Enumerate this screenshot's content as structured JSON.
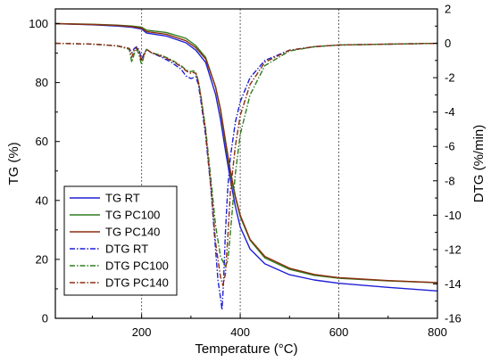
{
  "chart_data": {
    "type": "line",
    "xlabel": "Temperature (°C)",
    "ylabel_left": "TG (%)",
    "ylabel_right": "DTG (%/min)",
    "xlim": [
      25,
      800
    ],
    "ylim_left": [
      0,
      105
    ],
    "ylim_right": [
      -16,
      2
    ],
    "x_ticks": [
      200,
      400,
      600,
      800
    ],
    "y_ticks_left": [
      0,
      20,
      40,
      60,
      80,
      100
    ],
    "y_ticks_right": [
      -16,
      -14,
      -12,
      -10,
      -8,
      -6,
      -4,
      -2,
      0,
      2
    ],
    "x_tick_labels": [
      "200",
      "400",
      "600",
      "800"
    ],
    "y_tick_labels_left": [
      "0",
      "20",
      "40",
      "60",
      "80",
      "100"
    ],
    "y_tick_labels_right": [
      "-16",
      "-14",
      "-12",
      "-10",
      "-8",
      "-6",
      "-4",
      "-2",
      "0",
      "2"
    ],
    "reference_lines_x": [
      200,
      400,
      600
    ],
    "grid": false,
    "legend_position": "bottom-left",
    "series": [
      {
        "name": "TG RT",
        "axis": "left",
        "color": "#1f1fd6",
        "dash": "solid",
        "x": [
          25,
          100,
          150,
          180,
          200,
          210,
          250,
          290,
          310,
          330,
          350,
          360,
          370,
          380,
          390,
          400,
          420,
          450,
          500,
          550,
          600,
          700,
          800
        ],
        "y": [
          100,
          99.6,
          99.2,
          98.8,
          98.2,
          96.8,
          95.8,
          93.5,
          91,
          86.8,
          76,
          67.5,
          57,
          47,
          38,
          31,
          23.5,
          18.5,
          14.8,
          13,
          11.9,
          10.5,
          9.3
        ]
      },
      {
        "name": "TG PC100",
        "axis": "left",
        "color": "#2e7d1e",
        "dash": "solid",
        "x": [
          25,
          100,
          150,
          180,
          200,
          210,
          250,
          290,
          310,
          330,
          350,
          360,
          370,
          380,
          390,
          400,
          420,
          450,
          500,
          550,
          600,
          700,
          800
        ],
        "y": [
          100,
          99.8,
          99.5,
          99.2,
          98.8,
          97.8,
          97,
          95,
          92.5,
          88.5,
          78.5,
          70.5,
          59.5,
          49,
          41,
          34.5,
          26.5,
          20.5,
          16.6,
          14.6,
          13.6,
          12.7,
          12.1
        ]
      },
      {
        "name": "TG PC140",
        "axis": "left",
        "color": "#8b2f10",
        "dash": "solid",
        "x": [
          25,
          100,
          150,
          180,
          200,
          210,
          250,
          290,
          310,
          330,
          350,
          360,
          370,
          380,
          390,
          400,
          420,
          450,
          500,
          550,
          600,
          700,
          800
        ],
        "y": [
          100,
          99.7,
          99.4,
          99,
          98.5,
          97.3,
          96.4,
          94.2,
          91.8,
          88,
          78.5,
          71,
          60.5,
          50,
          41.5,
          35,
          26.8,
          21,
          17,
          14.9,
          13.8,
          12.8,
          12.1
        ]
      },
      {
        "name": "DTG RT",
        "axis": "right",
        "color": "#1f1fd6",
        "dash": "dashdot",
        "x": [
          25,
          100,
          150,
          175,
          180,
          185,
          190,
          195,
          200,
          205,
          210,
          215,
          220,
          240,
          260,
          280,
          290,
          300,
          305,
          310,
          315,
          320,
          330,
          340,
          350,
          355,
          360,
          363,
          366,
          370,
          375,
          380,
          390,
          400,
          420,
          450,
          500,
          550,
          600,
          700,
          800
        ],
        "y": [
          0,
          -0.05,
          -0.15,
          -0.3,
          -0.55,
          -0.3,
          -0.2,
          -0.4,
          -0.95,
          -0.6,
          -0.35,
          -0.45,
          -0.55,
          -0.8,
          -1.1,
          -1.5,
          -1.9,
          -2.05,
          -2.0,
          -1.95,
          -2.4,
          -3.3,
          -5.4,
          -8.3,
          -12.0,
          -13.8,
          -14.8,
          -15.5,
          -14.0,
          -11.0,
          -8.3,
          -6.6,
          -4.6,
          -3.4,
          -2.0,
          -1.0,
          -0.4,
          -0.2,
          -0.1,
          -0.05,
          0
        ]
      },
      {
        "name": "DTG PC100",
        "axis": "right",
        "color": "#2e7d1e",
        "dash": "dashdot",
        "x": [
          25,
          100,
          150,
          175,
          180,
          185,
          190,
          195,
          200,
          205,
          210,
          215,
          220,
          240,
          260,
          280,
          290,
          300,
          305,
          310,
          315,
          320,
          330,
          340,
          350,
          360,
          370,
          375,
          380,
          390,
          400,
          420,
          450,
          500,
          550,
          600,
          700,
          800
        ],
        "y": [
          0,
          -0.05,
          -0.15,
          -0.35,
          -1.1,
          -0.6,
          -0.3,
          -0.7,
          -1.25,
          -0.7,
          -0.35,
          -0.45,
          -0.55,
          -0.7,
          -0.95,
          -1.3,
          -1.55,
          -1.65,
          -1.6,
          -1.7,
          -2.2,
          -3.0,
          -5.0,
          -7.8,
          -10.6,
          -12.4,
          -13.0,
          -12.6,
          -11.0,
          -7.6,
          -5.3,
          -3.0,
          -1.3,
          -0.45,
          -0.2,
          -0.1,
          -0.05,
          0
        ]
      },
      {
        "name": "DTG PC140",
        "axis": "right",
        "color": "#8b2f10",
        "dash": "dashdot",
        "x": [
          25,
          100,
          150,
          175,
          180,
          185,
          190,
          195,
          200,
          205,
          210,
          215,
          220,
          240,
          260,
          280,
          290,
          300,
          305,
          310,
          315,
          320,
          330,
          340,
          350,
          360,
          365,
          370,
          375,
          380,
          390,
          400,
          420,
          450,
          500,
          550,
          600,
          700,
          800
        ],
        "y": [
          0,
          -0.05,
          -0.15,
          -0.3,
          -0.8,
          -0.4,
          -0.25,
          -0.55,
          -1.05,
          -0.65,
          -0.35,
          -0.45,
          -0.55,
          -0.75,
          -1.0,
          -1.35,
          -1.6,
          -1.75,
          -1.7,
          -1.75,
          -2.25,
          -3.1,
          -5.2,
          -8.2,
          -11.6,
          -13.6,
          -14.1,
          -13.4,
          -11.2,
          -8.6,
          -6.0,
          -4.2,
          -2.4,
          -1.1,
          -0.4,
          -0.2,
          -0.1,
          -0.05,
          0
        ]
      }
    ]
  }
}
